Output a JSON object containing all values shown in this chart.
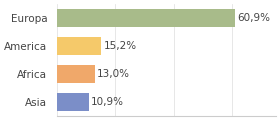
{
  "categories": [
    "Europa",
    "America",
    "Africa",
    "Asia"
  ],
  "values": [
    60.9,
    15.2,
    13.0,
    10.9
  ],
  "labels": [
    "60,9%",
    "15,2%",
    "13,0%",
    "10,9%"
  ],
  "bar_colors": [
    "#a8bb8a",
    "#f5c96a",
    "#f0a86a",
    "#7b8ec8"
  ],
  "background_color": "#ffffff",
  "xlim": [
    0,
    75
  ],
  "label_fontsize": 7.5,
  "tick_fontsize": 7.5
}
